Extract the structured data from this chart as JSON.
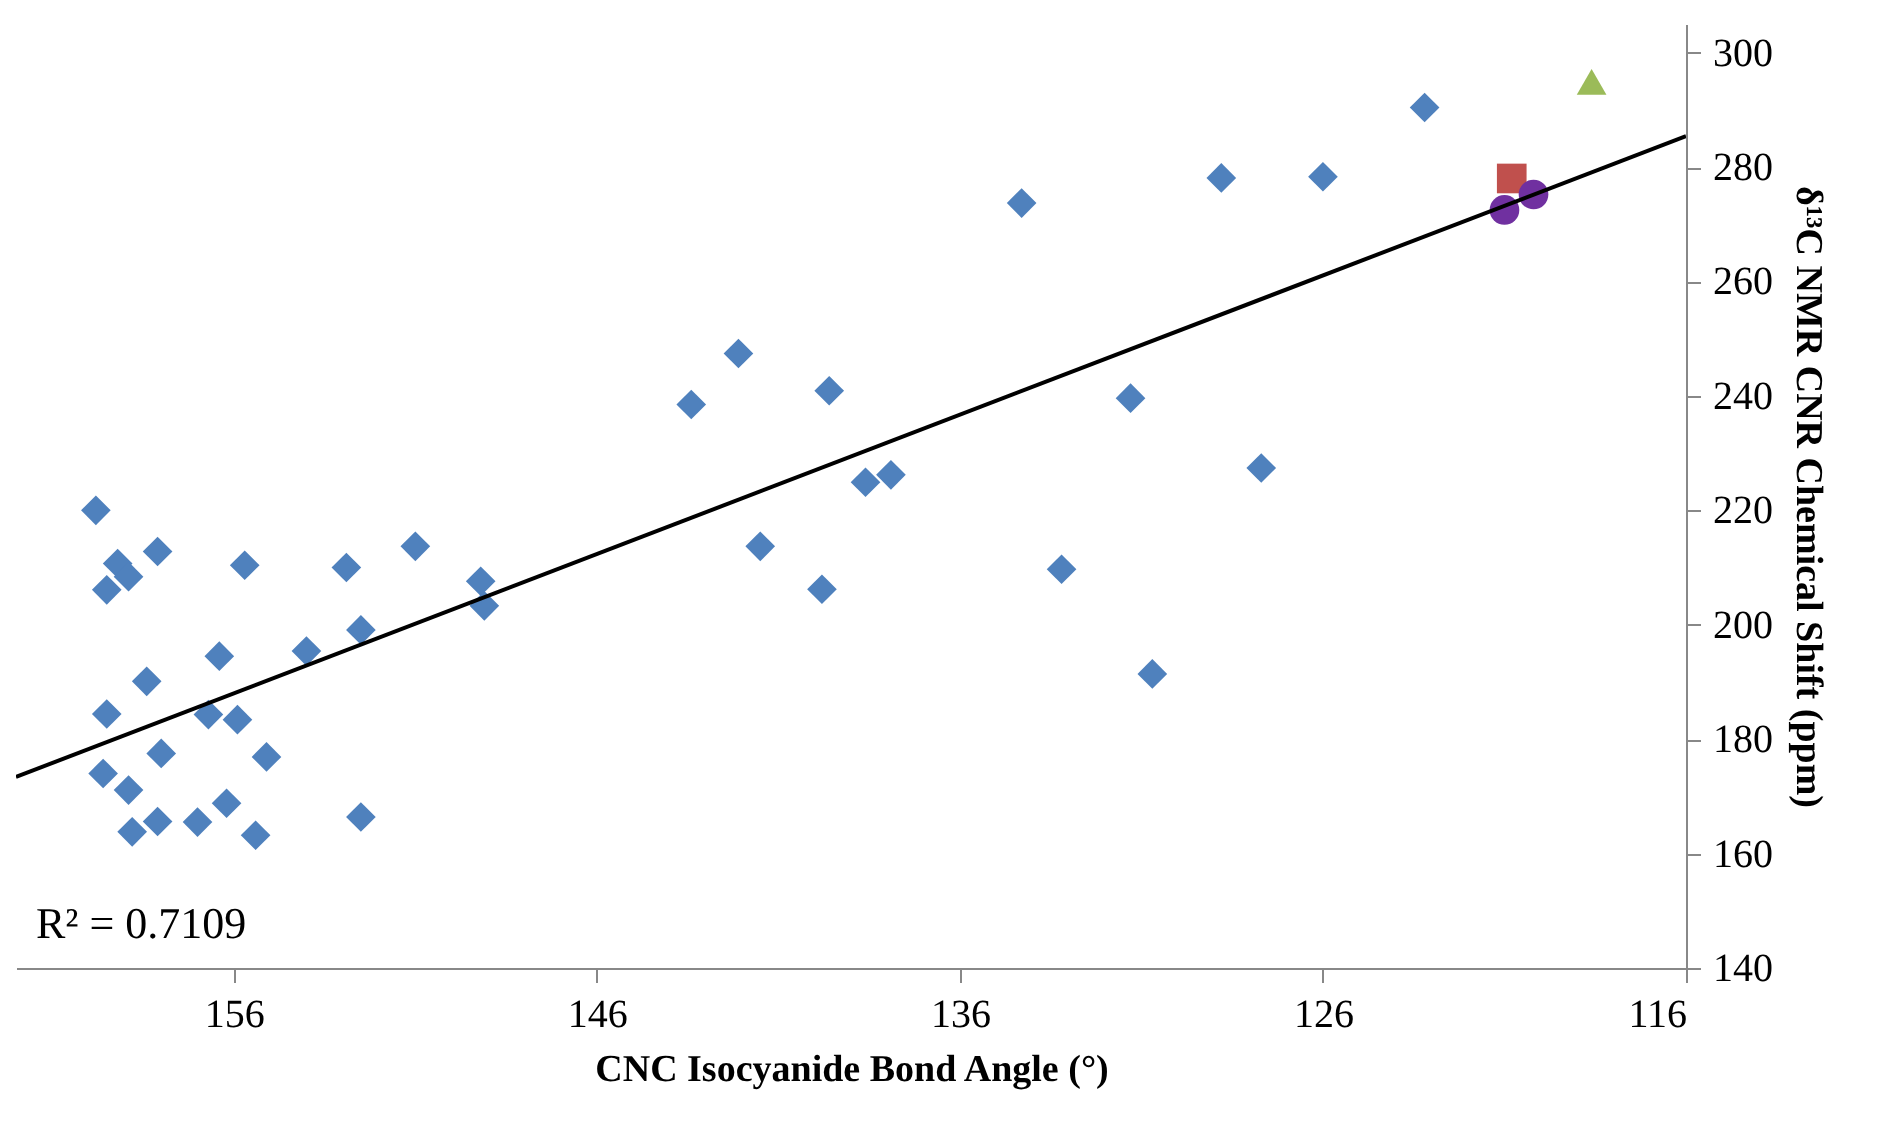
{
  "chart_data": {
    "type": "scatter",
    "xlabel": "CNC Isocyanide Bond Angle (°)",
    "ylabel": "δ¹³C NMR  CNR Chemical Shift (ppm)",
    "xlim": [
      162,
      116
    ],
    "xticks": [
      156,
      146,
      136,
      126,
      116
    ],
    "ylim": [
      140,
      305
    ],
    "yticks": [
      140,
      160,
      180,
      200,
      220,
      240,
      260,
      280,
      300
    ],
    "grid": false,
    "annotations": [
      "R² = 0.7109"
    ],
    "series": [
      {
        "marker": "diamond",
        "color": "#4f81bd",
        "x": [
          159.8,
          159.2,
          158.9,
          159.5,
          158.1,
          155.7,
          152.9,
          151.0,
          149.2,
          149.1,
          156.4,
          154.0,
          152.5,
          158.4,
          159.5,
          156.7,
          155.9,
          158.0,
          155.1,
          159.6,
          158.9,
          156.2,
          158.1,
          157.0,
          158.8,
          155.4,
          152.5,
          143.4,
          142.1,
          139.6,
          141.5,
          139.8,
          138.6,
          137.9,
          134.3,
          128.8,
          126.0,
          123.2,
          131.3,
          127.7,
          130.7,
          133.2
        ],
        "values": [
          220,
          210.7,
          208.4,
          206.1,
          212.8,
          210.4,
          210.0,
          213.7,
          207.6,
          203.3,
          194.5,
          195.4,
          199.1,
          190.1,
          184.4,
          184.3,
          183.4,
          177.5,
          176.9,
          174.0,
          171.1,
          168.8,
          165.6,
          165.5,
          163.8,
          163.2,
          166.4,
          238.5,
          247.4,
          240.9,
          213.7,
          206.2,
          224.9,
          226.2,
          273.7,
          278.1,
          278.3,
          290.4,
          239.6,
          227.4,
          191.4,
          209.7
        ]
      },
      {
        "marker": "square",
        "color": "#c0504d",
        "x": [
          120.8
        ],
        "values": [
          278.0
        ]
      },
      {
        "marker": "circle",
        "color": "#7030a0",
        "x": [
          121.0,
          120.2
        ],
        "values": [
          272.5,
          275.2
        ]
      },
      {
        "marker": "triangle",
        "color": "#9bbb59",
        "x": [
          118.6
        ],
        "values": [
          294.9
        ]
      },
      {
        "type": "line",
        "line_style": "solid",
        "color": "#000000",
        "x": [
          162,
          116
        ],
        "values": [
          173.4,
          285.4
        ]
      }
    ]
  }
}
